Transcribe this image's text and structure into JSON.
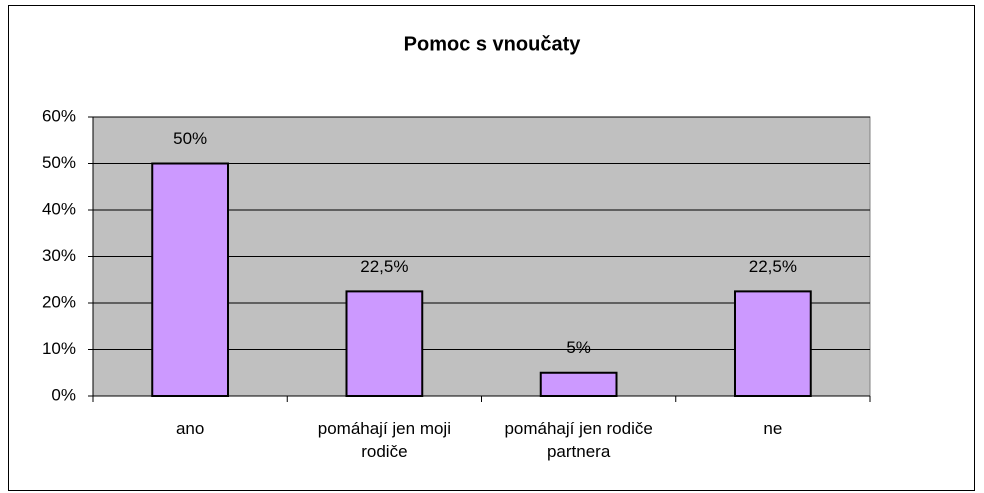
{
  "chart_data": {
    "type": "bar",
    "title": "Pomoc s vnoučaty",
    "categories": [
      "ano",
      "pomáhají jen moji rodiče",
      "pomáhají jen rodiče partnera",
      "ne"
    ],
    "values": [
      50,
      22.5,
      5,
      22.5
    ],
    "value_labels": [
      "50%",
      "22,5%",
      "5%",
      "22,5%"
    ],
    "color": "#cc99ff",
    "ylim": [
      0,
      60
    ],
    "yticks": [
      {
        "value": 0,
        "label": "0%"
      },
      {
        "value": 10,
        "label": "10%"
      },
      {
        "value": 20,
        "label": "20%"
      },
      {
        "value": 30,
        "label": "30%"
      },
      {
        "value": 40,
        "label": "40%"
      },
      {
        "value": 50,
        "label": "50%"
      },
      {
        "value": 60,
        "label": "60%"
      }
    ],
    "grid": true
  }
}
